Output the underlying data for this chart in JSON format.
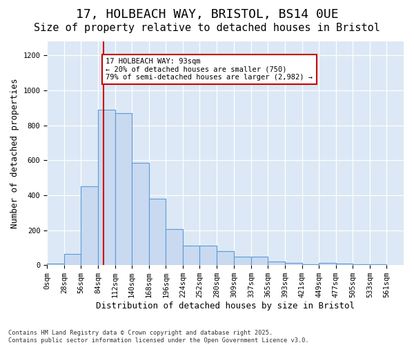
{
  "title_line1": "17, HOLBEACH WAY, BRISTOL, BS14 0UE",
  "title_line2": "Size of property relative to detached houses in Bristol",
  "xlabel": "Distribution of detached houses by size in Bristol",
  "ylabel": "Number of detached properties",
  "bar_values": [
    10,
    65,
    450,
    890,
    870,
    585,
    380,
    205,
    110,
    110,
    80,
    50,
    48,
    20,
    13,
    5,
    13,
    10,
    5,
    3,
    2
  ],
  "bin_edges": [
    0,
    28,
    56,
    84,
    112,
    140,
    168,
    196,
    224,
    252,
    280,
    309,
    337,
    365,
    393,
    421,
    449,
    477,
    505,
    533,
    561,
    589
  ],
  "tick_labels": [
    "0sqm",
    "28sqm",
    "56sqm",
    "84sqm",
    "112sqm",
    "140sqm",
    "168sqm",
    "196sqm",
    "224sqm",
    "252sqm",
    "280sqm",
    "309sqm",
    "337sqm",
    "365sqm",
    "393sqm",
    "421sqm",
    "449sqm",
    "477sqm",
    "505sqm",
    "533sqm",
    "561sqm"
  ],
  "bar_color": "#c9d9f0",
  "bar_edge_color": "#5b9bd5",
  "vline_x": 93,
  "vline_color": "#cc0000",
  "annotation_text": "17 HOLBEACH WAY: 93sqm\n← 20% of detached houses are smaller (750)\n79% of semi-detached houses are larger (2,982) →",
  "annotation_box_color": "#ffffff",
  "annotation_box_edge": "#cc0000",
  "ylim": [
    0,
    1280
  ],
  "yticks": [
    0,
    200,
    400,
    600,
    800,
    1000,
    1200
  ],
  "background_color": "#dce8f5",
  "footer_text": "Contains HM Land Registry data © Crown copyright and database right 2025.\nContains public sector information licensed under the Open Government Licence v3.0.",
  "title_fontsize": 13,
  "subtitle_fontsize": 11,
  "tick_fontsize": 7.5,
  "ylabel_fontsize": 9,
  "xlabel_fontsize": 9
}
